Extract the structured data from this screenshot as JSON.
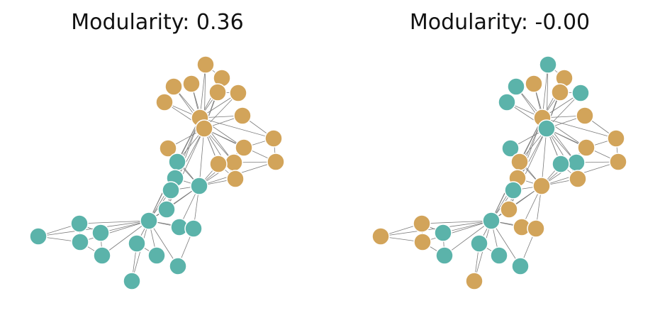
{
  "colors": {
    "community_a": "#d2a45a",
    "community_b": "#5bb3aa",
    "edge": "#7a7a7a",
    "node_stroke": "#ffffff"
  },
  "panels": [
    {
      "title": "Modularity: 0.36",
      "node_colors": [
        "a",
        "a",
        "a",
        "a",
        "a",
        "a",
        "a",
        "a",
        "a",
        "a",
        "a",
        "a",
        "a",
        "a",
        "a",
        "a",
        "a",
        "b",
        "b",
        "b",
        "b",
        "b",
        "b",
        "b",
        "b",
        "b",
        "b",
        "b",
        "b",
        "b",
        "b",
        "b",
        "b",
        "b"
      ]
    },
    {
      "title": "Modularity: -0.00",
      "node_colors": [
        "b",
        "a",
        "b",
        "a",
        "a",
        "b",
        "b",
        "a",
        "b",
        "a",
        "a",
        "a",
        "a",
        "b",
        "b",
        "b",
        "a",
        "a",
        "a",
        "b",
        "a",
        "a",
        "b",
        "a",
        "b",
        "a",
        "a",
        "b",
        "b",
        "b",
        "a",
        "a",
        "b",
        "a"
      ]
    }
  ]
}
